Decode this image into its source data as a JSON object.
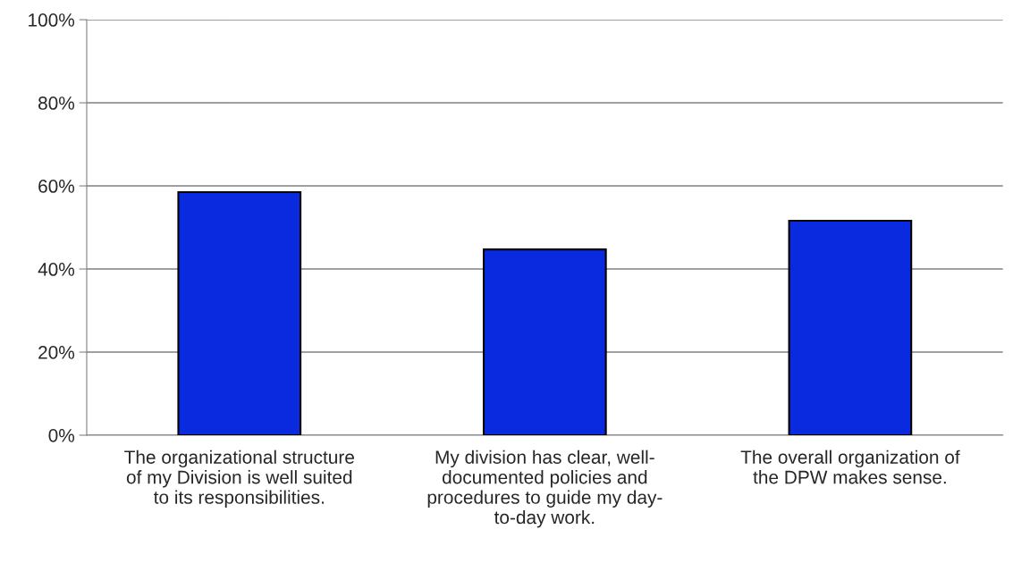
{
  "chart_data": {
    "type": "bar",
    "categories": [
      "The organizational structure\nof my Division is well suited\nto its responsibilities.",
      "My division has clear, well-\ndocumented policies and\nprocedures to guide my day-\nto-day work.",
      "The overall organization of\nthe DPW makes sense."
    ],
    "values": [
      58.5,
      44.7,
      51.6
    ],
    "color": "#0a2ae0",
    "ylim": [
      0,
      100
    ],
    "yticks": [
      {
        "value": 0,
        "label": "0%"
      },
      {
        "value": 20,
        "label": "20%"
      },
      {
        "value": 40,
        "label": "40%"
      },
      {
        "value": 60,
        "label": "60%"
      },
      {
        "value": 80,
        "label": "80%"
      },
      {
        "value": 100,
        "label": "100%"
      }
    ],
    "grid": "y",
    "legend": false
  }
}
